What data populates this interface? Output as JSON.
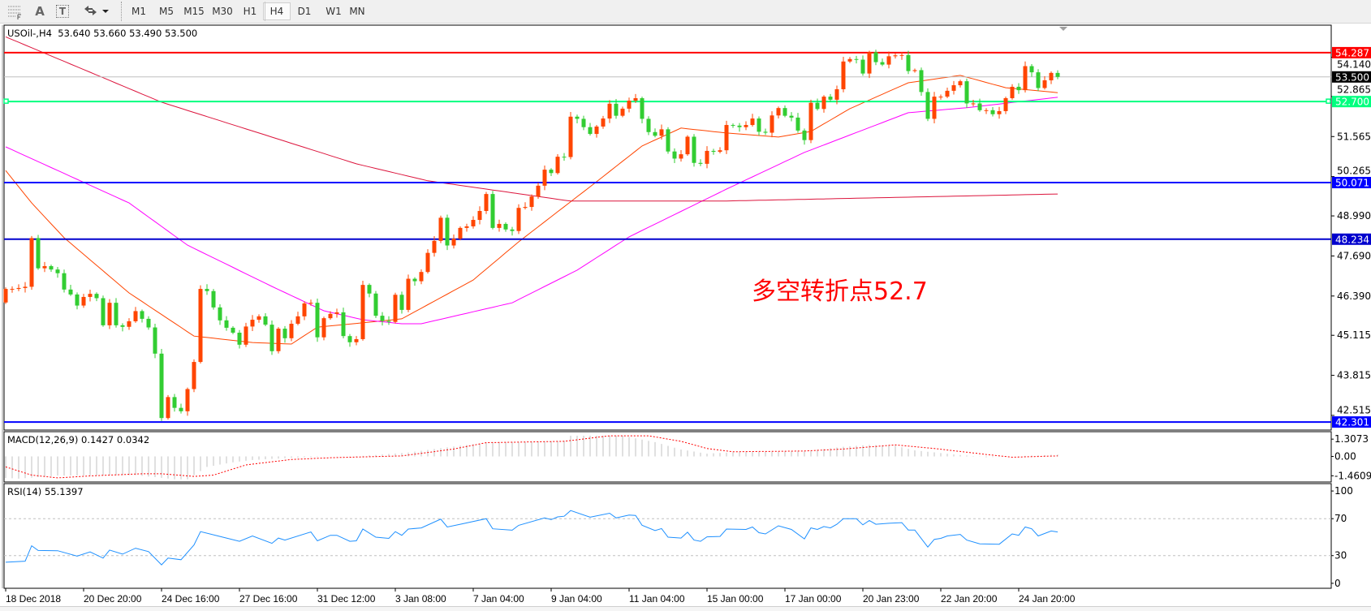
{
  "toolbar": {
    "tools": [
      {
        "icon": "period-separators-icon"
      },
      {
        "icon": "text-label-icon",
        "label": "A"
      },
      {
        "icon": "text-box-icon",
        "label": "T"
      },
      {
        "icon": "arrows-dropdown-icon"
      }
    ],
    "timeframes": [
      "M1",
      "M5",
      "M15",
      "M30",
      "H1",
      "H4",
      "D1",
      "W1",
      "MN"
    ],
    "active_timeframe": "H4"
  },
  "chart": {
    "symbol_label": "USOil-,H4",
    "ohlc": [
      "53.640",
      "53.660",
      "53.490",
      "53.500"
    ]
  },
  "macd": {
    "label": "MACD(12,26,9)",
    "main": "0.1427",
    "signal": "0.0342",
    "axis": [
      "1.3073",
      "0.00",
      "-1.4609"
    ]
  },
  "rsi": {
    "label": "RSI(14)",
    "value": "55.1397",
    "axis": [
      "100",
      "70",
      "30",
      "0"
    ]
  },
  "annotation": {
    "text": "多空转折点52.7",
    "color": "#FF0000"
  },
  "price_axis": {
    "ticks": [
      "54.140",
      "52.865",
      "51.565",
      "50.265",
      "48.990",
      "47.690",
      "46.390",
      "45.115",
      "43.815",
      "42.515"
    ]
  },
  "price_lines": [
    {
      "value": "54.287",
      "color": "#FF0000",
      "kind": "horizontal-line"
    },
    {
      "value": "53.500",
      "color": "#000000",
      "kind": "bid-line",
      "line_color": "#C0C0C0"
    },
    {
      "value": "52.700",
      "color": "#00FF7F",
      "kind": "horizontal-line"
    },
    {
      "value": "50.071",
      "color": "#0000FF",
      "kind": "horizontal-line"
    },
    {
      "value": "48.234",
      "color": "#0000CD",
      "kind": "horizontal-line"
    },
    {
      "value": "42.301",
      "color": "#0000FF",
      "kind": "horizontal-line"
    }
  ],
  "time_axis": {
    "labels": [
      "18 Dec 2018",
      "20 Dec 20:00",
      "24 Dec 16:00",
      "27 Dec 16:00",
      "31 Dec 12:00",
      "3 Jan 08:00",
      "7 Jan 04:00",
      "9 Jan 04:00",
      "11 Jan 04:00",
      "15 Jan 00:00",
      "17 Jan 00:00",
      "20 Jan 23:00",
      "22 Jan 20:00",
      "24 Jan 20:00"
    ],
    "bars_per_label": 12
  },
  "colors": {
    "bull_candle": "#FF4500",
    "bear_candle": "#32CD32",
    "ma_fast": "#FF4500",
    "ma_mid": "#FF00FF",
    "ma_slow": "#DC143C",
    "rsi_line": "#1E90FF",
    "macd_hist": "#C0C0C0",
    "macd_signal": "#FF0000",
    "level_line": "#C0C0C0"
  },
  "chart_data": {
    "type": "candlestick",
    "timeframe": "H4",
    "ylim": [
      42.04,
      55.18
    ],
    "first_open": 46.18,
    "close": [
      46.62,
      46.62,
      46.65,
      46.69,
      48.27,
      47.29,
      47.36,
      47.25,
      47.13,
      46.6,
      46.44,
      46.08,
      46.36,
      46.46,
      46.32,
      45.44,
      46.17,
      45.44,
      45.39,
      45.57,
      45.9,
      45.65,
      45.37,
      44.52,
      42.43,
      43.11,
      42.76,
      42.65,
      43.37,
      44.25,
      46.62,
      46.55,
      46.02,
      45.6,
      45.36,
      45.2,
      44.81,
      45.4,
      45.62,
      45.73,
      45.46,
      44.6,
      45.33,
      45.02,
      45.49,
      45.73,
      46.15,
      46.17,
      45.05,
      45.67,
      45.81,
      45.86,
      45.09,
      44.89,
      44.99,
      46.75,
      46.47,
      45.75,
      45.58,
      45.55,
      46.43,
      45.94,
      46.95,
      46.87,
      47.17,
      47.79,
      48.18,
      48.93,
      48.03,
      48.25,
      48.6,
      48.65,
      48.86,
      49.15,
      49.7,
      48.6,
      48.73,
      48.55,
      48.5,
      49.25,
      49.28,
      49.62,
      49.97,
      50.49,
      50.38,
      50.91,
      50.9,
      52.21,
      52.14,
      51.87,
      51.65,
      51.89,
      52.15,
      52.63,
      52.24,
      52.47,
      52.73,
      52.81,
      52.14,
      51.71,
      51.59,
      51.8,
      51.08,
      50.85,
      50.99,
      51.56,
      50.71,
      50.68,
      51.1,
      51.07,
      51.12,
      51.94,
      51.92,
      51.87,
      51.94,
      52.15,
      51.72,
      51.69,
      52.25,
      52.49,
      52.24,
      52.18,
      51.76,
      51.45,
      52.66,
      52.46,
      52.86,
      52.76,
      53.1,
      54.0,
      54.08,
      54.06,
      53.61,
      54.3,
      53.98,
      53.9,
      54.17,
      54.2,
      54.21,
      53.69,
      53.72,
      53.01,
      52.14,
      52.86,
      52.86,
      53.05,
      53.23,
      53.36,
      52.64,
      52.64,
      52.42,
      52.42,
      52.29,
      52.39,
      52.81,
      53.18,
      53.07,
      53.85,
      53.65,
      53.14,
      53.39,
      53.63,
      53.5
    ],
    "moving_averages": [
      {
        "role": "fast",
        "points": [
          [
            0,
            50.46
          ],
          [
            4,
            49.41
          ],
          [
            9,
            48.28
          ],
          [
            19,
            46.49
          ],
          [
            29,
            45.09
          ],
          [
            38,
            44.88
          ],
          [
            44,
            44.83
          ],
          [
            48,
            45.38
          ],
          [
            55,
            45.52
          ],
          [
            61,
            45.65
          ],
          [
            72,
            46.91
          ],
          [
            79,
            48.15
          ],
          [
            91,
            50.1
          ],
          [
            98,
            51.26
          ],
          [
            104,
            51.84
          ],
          [
            111,
            51.68
          ],
          [
            119,
            51.55
          ],
          [
            124,
            51.73
          ],
          [
            130,
            52.47
          ],
          [
            139,
            53.31
          ],
          [
            147,
            53.55
          ],
          [
            154,
            53.15
          ],
          [
            162,
            52.99
          ]
        ]
      },
      {
        "role": "mid",
        "points": [
          [
            0,
            51.23
          ],
          [
            19,
            49.41
          ],
          [
            28,
            48.04
          ],
          [
            41,
            46.7
          ],
          [
            49,
            45.91
          ],
          [
            55,
            45.62
          ],
          [
            61,
            45.49
          ],
          [
            64,
            45.49
          ],
          [
            78,
            46.17
          ],
          [
            88,
            47.23
          ],
          [
            96,
            48.31
          ],
          [
            111,
            49.86
          ],
          [
            123,
            51.05
          ],
          [
            139,
            52.34
          ],
          [
            148,
            52.5
          ],
          [
            162,
            52.84
          ]
        ]
      },
      {
        "role": "slow",
        "points": [
          [
            0,
            54.8
          ],
          [
            24,
            52.68
          ],
          [
            54,
            50.68
          ],
          [
            65,
            50.13
          ],
          [
            87,
            49.47
          ],
          [
            110,
            49.47
          ],
          [
            162,
            49.7
          ]
        ]
      }
    ],
    "macd": {
      "ylim": [
        -1.93,
        1.87
      ],
      "main_points": [
        [
          0,
          -1.62
        ],
        [
          2,
          -1.68
        ],
        [
          8,
          -1.45
        ],
        [
          20,
          -1.41
        ],
        [
          26,
          -1.72
        ],
        [
          28,
          -1.72
        ],
        [
          31,
          -0.79
        ],
        [
          35,
          -0.44
        ],
        [
          38,
          -0.27
        ],
        [
          44,
          -0.1
        ],
        [
          50,
          0.0
        ],
        [
          55,
          0.04
        ],
        [
          62,
          0.29
        ],
        [
          66,
          0.56
        ],
        [
          72,
          0.93
        ],
        [
          75,
          1.08
        ],
        [
          80,
          1.08
        ],
        [
          86,
          1.18
        ],
        [
          87,
          1.56
        ],
        [
          95,
          1.56
        ],
        [
          100,
          1.08
        ],
        [
          104,
          0.52
        ],
        [
          108,
          0.21
        ],
        [
          112,
          0.31
        ],
        [
          123,
          0.39
        ],
        [
          129,
          0.73
        ],
        [
          133,
          0.87
        ],
        [
          137,
          0.81
        ],
        [
          140,
          0.46
        ],
        [
          146,
          0.15
        ],
        [
          151,
          -0.06
        ],
        [
          157,
          0.04
        ],
        [
          162,
          0.14
        ]
      ],
      "signal_points": [
        [
          0,
          -0.79
        ],
        [
          4,
          -1.41
        ],
        [
          8,
          -1.62
        ],
        [
          13,
          -1.47
        ],
        [
          21,
          -1.31
        ],
        [
          24,
          -1.31
        ],
        [
          29,
          -1.51
        ],
        [
          32,
          -1.41
        ],
        [
          37,
          -0.64
        ],
        [
          44,
          -0.23
        ],
        [
          50,
          -0.1
        ],
        [
          61,
          0.04
        ],
        [
          69,
          0.56
        ],
        [
          74,
          1.04
        ],
        [
          86,
          1.14
        ],
        [
          93,
          1.56
        ],
        [
          99,
          1.56
        ],
        [
          104,
          1.14
        ],
        [
          108,
          0.6
        ],
        [
          112,
          0.35
        ],
        [
          123,
          0.41
        ],
        [
          129,
          0.56
        ],
        [
          137,
          0.87
        ],
        [
          143,
          0.6
        ],
        [
          151,
          0.15
        ],
        [
          155,
          -0.06
        ],
        [
          162,
          0.04
        ]
      ]
    },
    "rsi": {
      "ylim": [
        -5.4,
        108
      ],
      "levels": [
        70,
        30
      ],
      "points": [
        [
          0,
          22.8
        ],
        [
          3,
          24
        ],
        [
          4,
          40.7
        ],
        [
          5,
          35.6
        ],
        [
          8,
          35.3
        ],
        [
          11,
          29.5
        ],
        [
          13,
          34
        ],
        [
          15,
          27.3
        ],
        [
          16,
          36
        ],
        [
          18,
          31.6
        ],
        [
          20,
          38
        ],
        [
          22,
          34.3
        ],
        [
          24,
          20
        ],
        [
          25,
          27.3
        ],
        [
          27,
          25.5
        ],
        [
          29,
          41.5
        ],
        [
          30,
          56
        ],
        [
          33,
          50.8
        ],
        [
          36,
          45.5
        ],
        [
          38,
          51.3
        ],
        [
          41,
          43.3
        ],
        [
          42,
          49
        ],
        [
          43,
          46.8
        ],
        [
          47,
          55.6
        ],
        [
          48,
          46
        ],
        [
          50,
          52
        ],
        [
          51,
          52
        ],
        [
          53,
          45.5
        ],
        [
          54,
          46
        ],
        [
          55,
          58.8
        ],
        [
          57,
          50
        ],
        [
          59,
          48.7
        ],
        [
          60,
          56
        ],
        [
          61,
          52
        ],
        [
          62,
          58.8
        ],
        [
          64,
          60
        ],
        [
          67,
          69.5
        ],
        [
          68,
          61
        ],
        [
          70,
          64
        ],
        [
          74,
          70
        ],
        [
          75,
          59
        ],
        [
          78,
          57.5
        ],
        [
          79,
          62.8
        ],
        [
          83,
          70.8
        ],
        [
          84,
          69
        ],
        [
          85,
          72
        ],
        [
          86,
          72.7
        ],
        [
          87,
          78.8
        ],
        [
          90,
          71.6
        ],
        [
          93,
          75.9
        ],
        [
          94,
          70.8
        ],
        [
          96,
          74
        ],
        [
          97,
          73.5
        ],
        [
          98,
          62.8
        ],
        [
          100,
          57.2
        ],
        [
          101,
          59.3
        ],
        [
          102,
          50
        ],
        [
          104,
          49
        ],
        [
          105,
          55.3
        ],
        [
          106,
          46.8
        ],
        [
          107,
          45.5
        ],
        [
          108,
          50.3
        ],
        [
          110,
          50.8
        ],
        [
          111,
          58.8
        ],
        [
          114,
          58.3
        ],
        [
          115,
          61
        ],
        [
          116,
          54.8
        ],
        [
          117,
          53.5
        ],
        [
          119,
          62.3
        ],
        [
          121,
          58.3
        ],
        [
          123,
          48.1
        ],
        [
          124,
          60
        ],
        [
          125,
          58.3
        ],
        [
          126,
          61.5
        ],
        [
          127,
          60
        ],
        [
          128,
          64
        ],
        [
          129,
          70
        ],
        [
          131,
          70
        ],
        [
          132,
          63.3
        ],
        [
          133,
          68
        ],
        [
          134,
          64
        ],
        [
          136,
          65
        ],
        [
          138,
          65.7
        ],
        [
          139,
          57.7
        ],
        [
          140,
          57.7
        ],
        [
          142,
          39.3
        ],
        [
          143,
          47.6
        ],
        [
          144,
          48.7
        ],
        [
          145,
          51.3
        ],
        [
          147,
          53
        ],
        [
          148,
          46.8
        ],
        [
          150,
          42.8
        ],
        [
          153,
          42.3
        ],
        [
          155,
          53.5
        ],
        [
          156,
          52
        ],
        [
          157,
          61
        ],
        [
          158,
          59
        ],
        [
          159,
          51.3
        ],
        [
          161,
          56.7
        ],
        [
          162,
          55.6
        ]
      ]
    }
  }
}
